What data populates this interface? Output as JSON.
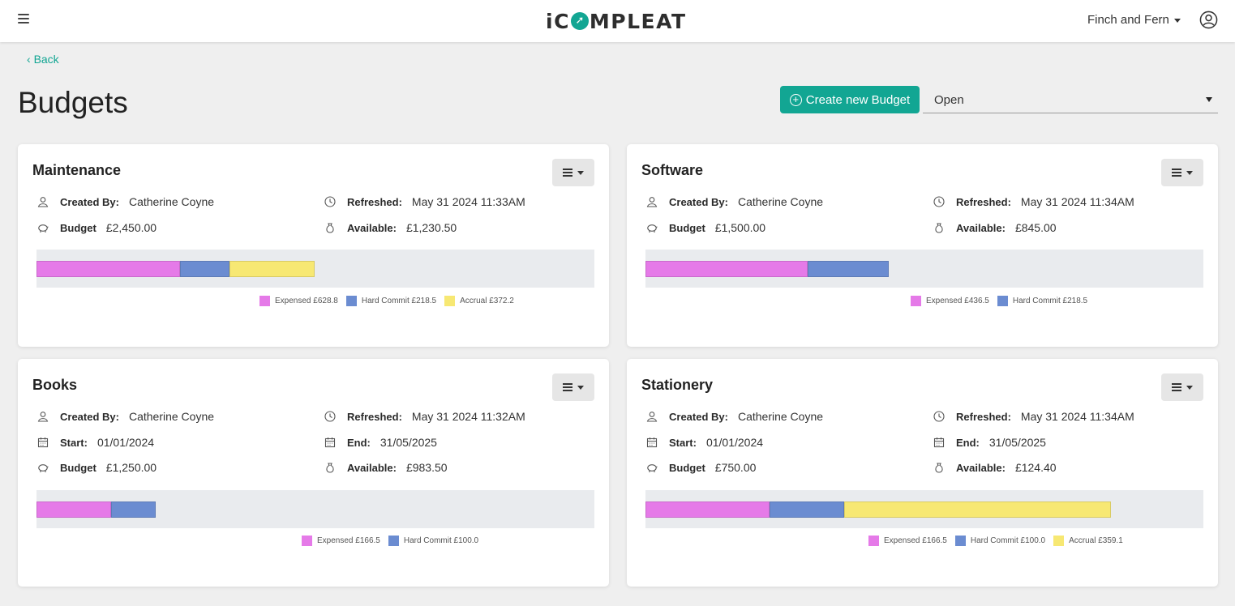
{
  "header": {
    "logo_prefix": "iC",
    "logo_o": "➚",
    "logo_suffix": "MPLEAT",
    "org_name": "Finch and Fern"
  },
  "nav": {
    "back_label": "Back"
  },
  "page": {
    "title": "Budgets",
    "create_label": "Create new Budget",
    "status_value": "Open"
  },
  "colors": {
    "accent": "#12a693",
    "expensed": "#e57ae8",
    "hard_commit": "#6b8cd1",
    "accrual": "#f7e873"
  },
  "labels": {
    "created_by": "Created By:",
    "refreshed": "Refreshed:",
    "budget": "Budget",
    "available": "Available:",
    "start": "Start:",
    "end": "End:"
  },
  "budgets": [
    {
      "name": "Maintenance",
      "created_by": "Catherine Coyne",
      "refreshed": "May 31 2024 11:33AM",
      "budget": "£2,450.00",
      "available": "£1,230.50",
      "total": 2450,
      "segments": [
        {
          "type": "expensed",
          "value": 628.8,
          "label": "Expensed £628.8"
        },
        {
          "type": "hard_commit",
          "value": 218.5,
          "label": "Hard Commit £218.5"
        },
        {
          "type": "accrual",
          "value": 372.2,
          "label": "Accrual £372.2"
        }
      ]
    },
    {
      "name": "Software",
      "created_by": "Catherine Coyne",
      "refreshed": "May 31 2024 11:34AM",
      "budget": "£1,500.00",
      "available": "£845.00",
      "total": 1500,
      "segments": [
        {
          "type": "expensed",
          "value": 436.5,
          "label": "Expensed £436.5"
        },
        {
          "type": "hard_commit",
          "value": 218.5,
          "label": "Hard Commit £218.5"
        }
      ]
    },
    {
      "name": "Books",
      "created_by": "Catherine Coyne",
      "refreshed": "May 31 2024 11:32AM",
      "start": "01/01/2024",
      "end": "31/05/2025",
      "budget": "£1,250.00",
      "available": "£983.50",
      "total": 1250,
      "segments": [
        {
          "type": "expensed",
          "value": 166.5,
          "label": "Expensed £166.5"
        },
        {
          "type": "hard_commit",
          "value": 100.0,
          "label": "Hard Commit £100.0"
        }
      ]
    },
    {
      "name": "Stationery",
      "created_by": "Catherine Coyne",
      "refreshed": "May 31 2024 11:34AM",
      "start": "01/01/2024",
      "end": "31/05/2025",
      "budget": "£750.00",
      "available": "£124.40",
      "total": 750,
      "segments": [
        {
          "type": "expensed",
          "value": 166.5,
          "label": "Expensed £166.5"
        },
        {
          "type": "hard_commit",
          "value": 100.0,
          "label": "Hard Commit £100.0"
        },
        {
          "type": "accrual",
          "value": 359.1,
          "label": "Accrual £359.1"
        }
      ]
    }
  ]
}
